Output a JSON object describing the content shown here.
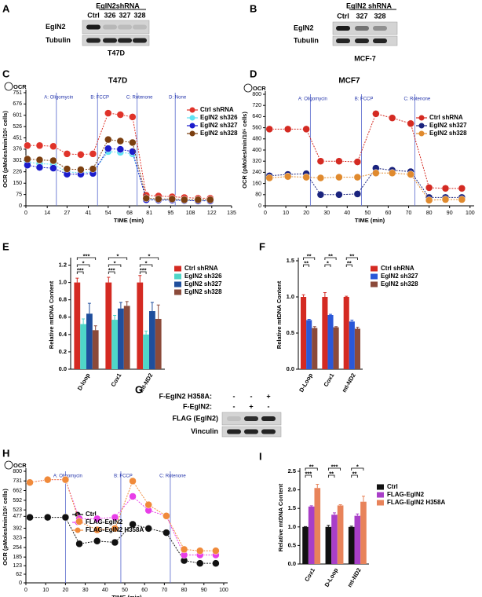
{
  "blots": [
    {
      "panel": "A",
      "header": "EglN2shRNA",
      "lanes": [
        "Ctrl",
        "326",
        "327",
        "328"
      ],
      "rows": [
        "EglN2",
        "Tubulin"
      ],
      "cell_line": "T47D"
    },
    {
      "panel": "B",
      "header": "EglN2 shRNA",
      "lanes": [
        "Ctrl",
        "327",
        "328"
      ],
      "rows": [
        "EglN2",
        "Tubulin"
      ],
      "cell_line": "MCF-7"
    },
    {
      "panel": "G",
      "conditions": [
        {
          "label": "F-EglN2 H358A:",
          "signs": [
            "-",
            "-",
            "+"
          ]
        },
        {
          "label": "F-EglN2:",
          "signs": [
            "-",
            "+",
            "-"
          ]
        }
      ],
      "rows": [
        "FLAG (EglN2)",
        "Vinculin"
      ]
    }
  ],
  "chart_data": [
    {
      "type": "line",
      "panel": "C",
      "title": "T47D",
      "ocr_label": "OCR",
      "x_label": "TIME (min)",
      "y_label": "OCR (pMoles/min/10⁵ cells)",
      "x": [
        1,
        9,
        18,
        27,
        36,
        44,
        54,
        62,
        70,
        79,
        87,
        96,
        104,
        113,
        121
      ],
      "xlim": [
        0,
        135
      ],
      "xticks": [
        0,
        14,
        27,
        41,
        54,
        68,
        81,
        95,
        108,
        122,
        135
      ],
      "ylim": [
        0,
        751
      ],
      "yticks": [
        0,
        75,
        150,
        226,
        301,
        376,
        451,
        526,
        601,
        676,
        751
      ],
      "injections": [
        {
          "label": "A: Oligomycin",
          "x": 20
        },
        {
          "label": "B: FCCP",
          "x": 47
        },
        {
          "label": "C: Rotenone",
          "x": 73
        },
        {
          "label": "D: None",
          "x": 98
        }
      ],
      "series": [
        {
          "name": "Ctrl shRNA",
          "color": "#e0332a",
          "values": [
            400,
            400,
            395,
            345,
            340,
            345,
            615,
            605,
            590,
            70,
            65,
            60,
            55,
            50,
            50
          ]
        },
        {
          "name": "EglN2 sh326",
          "color": "#5fe3f2",
          "values": [
            290,
            280,
            275,
            225,
            220,
            225,
            360,
            355,
            345,
            45,
            40,
            40,
            35,
            35,
            35
          ]
        },
        {
          "name": "EglN2 sh327",
          "color": "#1c1ccc",
          "values": [
            270,
            255,
            250,
            210,
            210,
            215,
            380,
            375,
            360,
            40,
            38,
            38,
            35,
            33,
            33
          ]
        },
        {
          "name": "EglN2 sh328",
          "color": "#7b3f10",
          "values": [
            310,
            305,
            300,
            245,
            240,
            245,
            440,
            430,
            420,
            50,
            45,
            45,
            40,
            40,
            40
          ]
        }
      ]
    },
    {
      "type": "line",
      "panel": "D",
      "title": "MCF7",
      "ocr_label": "OCR",
      "x_label": "TIME (min)",
      "y_label": "OCR (pMoles/min/10⁵ cells)",
      "x": [
        2,
        11,
        20,
        27,
        36,
        45,
        54,
        62,
        71,
        80,
        88,
        96
      ],
      "xlim": [
        0,
        102
      ],
      "xticks": [
        0,
        10,
        20,
        30,
        40,
        50,
        60,
        70,
        80,
        90,
        100
      ],
      "ylim": [
        0,
        800
      ],
      "yticks": [
        0,
        80,
        160,
        240,
        320,
        400,
        480,
        560,
        640,
        720,
        800
      ],
      "injections": [
        {
          "label": "A: Oligomycin",
          "x": 22
        },
        {
          "label": "B: FCCP",
          "x": 47
        },
        {
          "label": "C: Rotenone",
          "x": 73
        }
      ],
      "series": [
        {
          "name": "Ctrl shRNA",
          "color": "#d42a22",
          "values": [
            550,
            550,
            550,
            320,
            320,
            315,
            660,
            630,
            590,
            130,
            125,
            125
          ]
        },
        {
          "name": "EglN2 sh327",
          "color": "#1a237e",
          "values": [
            215,
            225,
            230,
            80,
            80,
            85,
            270,
            255,
            245,
            60,
            60,
            60
          ]
        },
        {
          "name": "EglN2 sh328",
          "color": "#e08a2e",
          "values": [
            200,
            210,
            205,
            200,
            205,
            205,
            235,
            235,
            225,
            40,
            45,
            45
          ]
        }
      ]
    },
    {
      "type": "bar",
      "panel": "E",
      "y_label": "Relative mtDNA Content",
      "categories": [
        "D-loop",
        "Cox1",
        "mt-ND2"
      ],
      "ylim": [
        0,
        1.25
      ],
      "yticks": [
        {
          "value": 0,
          "label": "0.0"
        },
        0.2,
        0.4,
        0.6,
        0.8,
        {
          "value": 1,
          "label": "1.0"
        },
        1.2
      ],
      "significance": [
        [
          "***",
          "*",
          "***"
        ],
        [
          "*",
          "*",
          "***"
        ],
        [
          "*",
          "*",
          "***"
        ]
      ],
      "series": [
        {
          "name": "Ctrl shRNA",
          "color": "#d42a22",
          "values": [
            1.0,
            1.0,
            1.0
          ],
          "errors": [
            0.05,
            0.06,
            0.08
          ]
        },
        {
          "name": "EglN2 sh326",
          "color": "#4fd6c8",
          "values": [
            0.52,
            0.57,
            0.4
          ],
          "errors": [
            0.06,
            0.05,
            0.04
          ]
        },
        {
          "name": "EglN2 sh327",
          "color": "#1f4e9c",
          "values": [
            0.64,
            0.7,
            0.67
          ],
          "errors": [
            0.12,
            0.07,
            0.1
          ]
        },
        {
          "name": "EglN2 sh328",
          "color": "#8b4a3a",
          "values": [
            0.45,
            0.73,
            0.58
          ],
          "errors": [
            0.05,
            0.05,
            0.16
          ]
        }
      ]
    },
    {
      "type": "bar",
      "panel": "F",
      "y_label": "Relative mtDNA Content",
      "categories": [
        "D-Loop",
        "Cox1",
        "mt-ND2"
      ],
      "ylim": [
        0,
        1.5
      ],
      "yticks": [
        {
          "value": 0,
          "label": "0.0"
        },
        0.5,
        {
          "value": 1,
          "label": "1.0"
        },
        1.5
      ],
      "significance": [
        [
          "**",
          "**"
        ],
        [
          "**",
          "*"
        ],
        [
          "**",
          "**"
        ]
      ],
      "series": [
        {
          "name": "Ctrl shRNA",
          "color": "#d42a22",
          "values": [
            1.0,
            1.0,
            1.0
          ],
          "errors": [
            0.03,
            0.06,
            0.01
          ]
        },
        {
          "name": "EglN2 sh327",
          "color": "#2a58d8",
          "values": [
            0.68,
            0.75,
            0.66
          ],
          "errors": [
            0.01,
            0.01,
            0.02
          ]
        },
        {
          "name": "EglN2 sh328",
          "color": "#8b4a3a",
          "values": [
            0.57,
            0.58,
            0.56
          ],
          "errors": [
            0.02,
            0.01,
            0.02
          ]
        }
      ]
    },
    {
      "type": "line",
      "panel": "H",
      "ocr_label": "OCR",
      "x_label": "TIME (min)",
      "y_label": "OCR (pMoles/min/10⁵ cells)",
      "x": [
        2,
        11,
        20,
        27,
        36,
        45,
        54,
        62,
        71,
        80,
        88,
        96
      ],
      "xlim": [
        0,
        102
      ],
      "xticks": [
        0,
        10,
        20,
        30,
        40,
        50,
        60,
        70,
        80,
        90,
        100
      ],
      "ylim": [
        0,
        800
      ],
      "yticks": [
        0,
        62,
        123,
        185,
        254,
        323,
        392,
        477,
        523,
        592,
        662,
        731,
        800
      ],
      "injections": [
        {
          "label": "A: Oligomycin",
          "x": 20
        },
        {
          "label": "B: FCCP",
          "x": 48
        },
        {
          "label": "C: Rotenone",
          "x": 73
        }
      ],
      "series": [
        {
          "name": "Ctrl",
          "color": "#111111",
          "values": [
            470,
            470,
            470,
            280,
            300,
            290,
            420,
            390,
            360,
            160,
            140,
            140
          ]
        },
        {
          "name": "FLAG-EglN2",
          "color": "#e83ee8",
          "values": [
            720,
            740,
            740,
            460,
            460,
            470,
            620,
            520,
            480,
            200,
            200,
            200
          ]
        },
        {
          "name": "FLAG-EglN2 H358A",
          "color": "#f08a3a",
          "values": [
            720,
            740,
            740,
            440,
            380,
            390,
            730,
            560,
            480,
            240,
            230,
            230
          ]
        }
      ]
    },
    {
      "type": "bar",
      "panel": "I",
      "y_label": "Relative mtDNA Content",
      "categories": [
        "Cox1",
        "D-Loop",
        "mt-ND2"
      ],
      "ylim": [
        0,
        2.5
      ],
      "yticks": [
        {
          "value": 0,
          "label": "0.0"
        },
        0.5,
        {
          "value": 1,
          "label": "1.0"
        },
        1.5,
        {
          "value": 2,
          "label": "2.0"
        },
        2.5
      ],
      "significance": [
        [
          "**",
          "***"
        ],
        [
          "***",
          "**"
        ],
        [
          "*",
          "**"
        ]
      ],
      "series": [
        {
          "name": "Ctrl",
          "color": "#111111",
          "values": [
            1.0,
            1.0,
            1.0
          ],
          "errors": [
            0.01,
            0.04,
            0.02
          ]
        },
        {
          "name": "FLAG-EglN2",
          "color": "#a83ec8",
          "values": [
            1.55,
            1.33,
            1.3
          ],
          "errors": [
            0.02,
            0.05,
            0.05
          ]
        },
        {
          "name": "FLAG-EglN2 H358A",
          "color": "#e8835a",
          "values": [
            2.05,
            1.58,
            1.68
          ],
          "errors": [
            0.1,
            0.02,
            0.15
          ]
        }
      ]
    }
  ]
}
